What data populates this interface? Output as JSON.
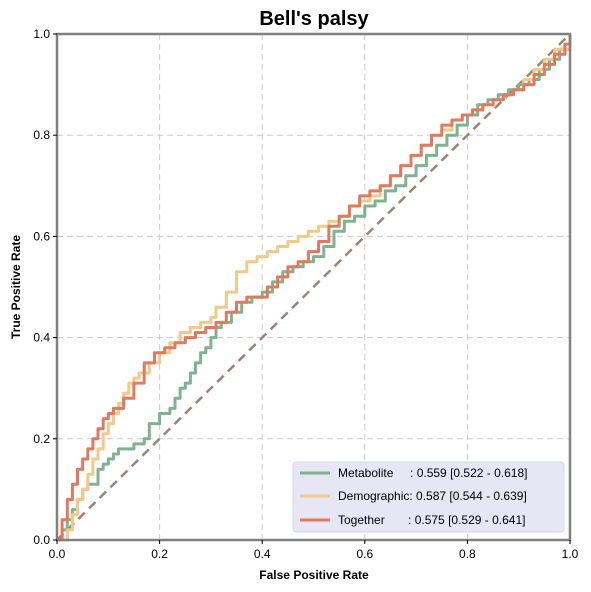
{
  "chart_data": {
    "type": "line",
    "title": "Bell's palsy",
    "xlabel": "False Positive Rate",
    "ylabel": "True Positive Rate",
    "xlim": [
      0,
      1
    ],
    "ylim": [
      0,
      1
    ],
    "xticks": [
      "0.0",
      "0.2",
      "0.4",
      "0.6",
      "0.8",
      "1.0"
    ],
    "yticks": [
      "0.0",
      "0.2",
      "0.4",
      "0.6",
      "0.8",
      "1.0"
    ],
    "grid": true,
    "legend_position": "bottom-right",
    "series": [
      {
        "name": "Metabolite",
        "legend_label": "Metabolite     : 0.559 [0.522 - 0.618]",
        "color": "#7fb38f",
        "points": [
          [
            0.0,
            0.0
          ],
          [
            0.01,
            0.02
          ],
          [
            0.02,
            0.04
          ],
          [
            0.03,
            0.06
          ],
          [
            0.04,
            0.08
          ],
          [
            0.05,
            0.1
          ],
          [
            0.06,
            0.11
          ],
          [
            0.08,
            0.14
          ],
          [
            0.09,
            0.15
          ],
          [
            0.1,
            0.16
          ],
          [
            0.11,
            0.17
          ],
          [
            0.12,
            0.18
          ],
          [
            0.14,
            0.18
          ],
          [
            0.15,
            0.19
          ],
          [
            0.17,
            0.2
          ],
          [
            0.18,
            0.23
          ],
          [
            0.2,
            0.25
          ],
          [
            0.22,
            0.26
          ],
          [
            0.23,
            0.28
          ],
          [
            0.24,
            0.3
          ],
          [
            0.25,
            0.31
          ],
          [
            0.26,
            0.33
          ],
          [
            0.27,
            0.35
          ],
          [
            0.28,
            0.37
          ],
          [
            0.29,
            0.38
          ],
          [
            0.3,
            0.4
          ],
          [
            0.31,
            0.42
          ],
          [
            0.32,
            0.43
          ],
          [
            0.34,
            0.45
          ],
          [
            0.36,
            0.47
          ],
          [
            0.38,
            0.48
          ],
          [
            0.4,
            0.49
          ],
          [
            0.42,
            0.51
          ],
          [
            0.44,
            0.53
          ],
          [
            0.46,
            0.54
          ],
          [
            0.48,
            0.55
          ],
          [
            0.5,
            0.56
          ],
          [
            0.52,
            0.58
          ],
          [
            0.54,
            0.61
          ],
          [
            0.56,
            0.63
          ],
          [
            0.58,
            0.64
          ],
          [
            0.6,
            0.66
          ],
          [
            0.62,
            0.67
          ],
          [
            0.64,
            0.69
          ],
          [
            0.66,
            0.7
          ],
          [
            0.68,
            0.72
          ],
          [
            0.7,
            0.74
          ],
          [
            0.72,
            0.76
          ],
          [
            0.74,
            0.78
          ],
          [
            0.76,
            0.8
          ],
          [
            0.78,
            0.82
          ],
          [
            0.8,
            0.84
          ],
          [
            0.82,
            0.86
          ],
          [
            0.84,
            0.87
          ],
          [
            0.86,
            0.88
          ],
          [
            0.88,
            0.89
          ],
          [
            0.9,
            0.9
          ],
          [
            0.92,
            0.91
          ],
          [
            0.94,
            0.93
          ],
          [
            0.96,
            0.95
          ],
          [
            0.98,
            0.97
          ],
          [
            1.0,
            1.0
          ]
        ]
      },
      {
        "name": "Demographic",
        "legend_label": "Demographic: 0.587 [0.544 - 0.639]",
        "color": "#f2c98a",
        "points": [
          [
            0.0,
            0.0
          ],
          [
            0.02,
            0.02
          ],
          [
            0.03,
            0.05
          ],
          [
            0.04,
            0.08
          ],
          [
            0.05,
            0.1
          ],
          [
            0.06,
            0.13
          ],
          [
            0.07,
            0.16
          ],
          [
            0.08,
            0.18
          ],
          [
            0.09,
            0.21
          ],
          [
            0.1,
            0.23
          ],
          [
            0.11,
            0.25
          ],
          [
            0.12,
            0.27
          ],
          [
            0.13,
            0.29
          ],
          [
            0.14,
            0.31
          ],
          [
            0.15,
            0.32
          ],
          [
            0.16,
            0.33
          ],
          [
            0.18,
            0.35
          ],
          [
            0.2,
            0.37
          ],
          [
            0.22,
            0.39
          ],
          [
            0.24,
            0.41
          ],
          [
            0.26,
            0.42
          ],
          [
            0.28,
            0.43
          ],
          [
            0.3,
            0.44
          ],
          [
            0.31,
            0.46
          ],
          [
            0.33,
            0.49
          ],
          [
            0.35,
            0.53
          ],
          [
            0.37,
            0.55
          ],
          [
            0.39,
            0.56
          ],
          [
            0.41,
            0.57
          ],
          [
            0.43,
            0.58
          ],
          [
            0.45,
            0.59
          ],
          [
            0.47,
            0.6
          ],
          [
            0.49,
            0.61
          ],
          [
            0.51,
            0.62
          ],
          [
            0.53,
            0.63
          ],
          [
            0.55,
            0.64
          ],
          [
            0.57,
            0.66
          ],
          [
            0.59,
            0.67
          ],
          [
            0.61,
            0.68
          ],
          [
            0.63,
            0.7
          ],
          [
            0.65,
            0.72
          ],
          [
            0.67,
            0.74
          ],
          [
            0.69,
            0.76
          ],
          [
            0.71,
            0.78
          ],
          [
            0.73,
            0.8
          ],
          [
            0.75,
            0.81
          ],
          [
            0.77,
            0.83
          ],
          [
            0.79,
            0.84
          ],
          [
            0.81,
            0.85
          ],
          [
            0.83,
            0.86
          ],
          [
            0.85,
            0.87
          ],
          [
            0.87,
            0.88
          ],
          [
            0.89,
            0.89
          ],
          [
            0.91,
            0.91
          ],
          [
            0.93,
            0.93
          ],
          [
            0.95,
            0.95
          ],
          [
            0.97,
            0.97
          ],
          [
            1.0,
            1.0
          ]
        ]
      },
      {
        "name": "Together",
        "legend_label": "Together       : 0.575 [0.529 - 0.641]",
        "color": "#e07a5f",
        "points": [
          [
            0.0,
            0.0
          ],
          [
            0.01,
            0.04
          ],
          [
            0.02,
            0.08
          ],
          [
            0.03,
            0.11
          ],
          [
            0.04,
            0.14
          ],
          [
            0.05,
            0.16
          ],
          [
            0.06,
            0.18
          ],
          [
            0.07,
            0.2
          ],
          [
            0.08,
            0.22
          ],
          [
            0.09,
            0.24
          ],
          [
            0.1,
            0.25
          ],
          [
            0.11,
            0.26
          ],
          [
            0.13,
            0.28
          ],
          [
            0.15,
            0.31
          ],
          [
            0.17,
            0.35
          ],
          [
            0.19,
            0.37
          ],
          [
            0.21,
            0.38
          ],
          [
            0.23,
            0.39
          ],
          [
            0.25,
            0.4
          ],
          [
            0.27,
            0.41
          ],
          [
            0.29,
            0.42
          ],
          [
            0.31,
            0.43
          ],
          [
            0.33,
            0.45
          ],
          [
            0.35,
            0.47
          ],
          [
            0.37,
            0.48
          ],
          [
            0.39,
            0.48
          ],
          [
            0.41,
            0.5
          ],
          [
            0.43,
            0.52
          ],
          [
            0.45,
            0.54
          ],
          [
            0.47,
            0.55
          ],
          [
            0.49,
            0.57
          ],
          [
            0.51,
            0.59
          ],
          [
            0.53,
            0.62
          ],
          [
            0.55,
            0.64
          ],
          [
            0.57,
            0.66
          ],
          [
            0.59,
            0.68
          ],
          [
            0.61,
            0.69
          ],
          [
            0.63,
            0.7
          ],
          [
            0.65,
            0.72
          ],
          [
            0.67,
            0.74
          ],
          [
            0.69,
            0.76
          ],
          [
            0.71,
            0.78
          ],
          [
            0.73,
            0.8
          ],
          [
            0.75,
            0.82
          ],
          [
            0.77,
            0.83
          ],
          [
            0.79,
            0.84
          ],
          [
            0.81,
            0.85
          ],
          [
            0.83,
            0.86
          ],
          [
            0.85,
            0.87
          ],
          [
            0.87,
            0.88
          ],
          [
            0.89,
            0.89
          ],
          [
            0.91,
            0.9
          ],
          [
            0.93,
            0.92
          ],
          [
            0.95,
            0.94
          ],
          [
            0.97,
            0.96
          ],
          [
            0.99,
            0.98
          ],
          [
            1.0,
            1.0
          ]
        ]
      }
    ],
    "reference_line": {
      "points": [
        [
          0,
          0
        ],
        [
          1,
          1
        ]
      ],
      "color": "#a08272",
      "style": "dashed"
    }
  }
}
